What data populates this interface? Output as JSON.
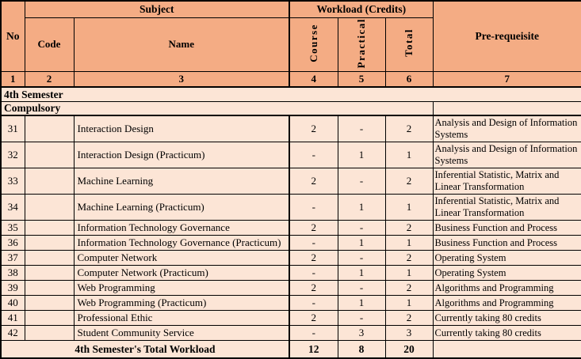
{
  "colors": {
    "header_bg": "#F4AC84",
    "body_bg": "#FCE5D6",
    "border": "#000000"
  },
  "table": {
    "header": {
      "no": "No",
      "subject": "Subject",
      "code": "Code",
      "name": "Name",
      "workload": "Workload (Credits)",
      "course": "Course",
      "practical": "Practical",
      "total": "Total",
      "prerequisite": "Pre-requeisite",
      "col_numbers": [
        "1",
        "2",
        "3",
        "4",
        "5",
        "6",
        "7"
      ]
    },
    "semester_label": "4th Semester",
    "group_label": "Compulsory",
    "rows": [
      {
        "no": "31",
        "code": "",
        "name": "Interaction Design",
        "course": "2",
        "practical": "-",
        "total": "2",
        "prerequisite": "Analysis and Design of Information Systems"
      },
      {
        "no": "32",
        "code": "",
        "name": "Interaction Design (Practicum)",
        "course": "-",
        "practical": "1",
        "total": "1",
        "prerequisite": "Analysis and Design of Information Systems"
      },
      {
        "no": "33",
        "code": "",
        "name": "Machine Learning",
        "course": "2",
        "practical": "-",
        "total": "2",
        "prerequisite": "Inferential Statistic, Matrix and Linear Transformation"
      },
      {
        "no": "34",
        "code": "",
        "name": "Machine Learning (Practicum)",
        "course": "-",
        "practical": "1",
        "total": "1",
        "prerequisite": "Inferential Statistic, Matrix and Linear Transformation"
      },
      {
        "no": "35",
        "code": "",
        "name": "Information Technology Governance",
        "course": "2",
        "practical": "-",
        "total": "2",
        "prerequisite": "Business Function and Process"
      },
      {
        "no": "36",
        "code": "",
        "name": "Information Technology Governance (Practicum)",
        "course": "-",
        "practical": "1",
        "total": "1",
        "prerequisite": "Business Function and Process"
      },
      {
        "no": "37",
        "code": "",
        "name": "Computer Network",
        "course": "2",
        "practical": "-",
        "total": "2",
        "prerequisite": "Operating System"
      },
      {
        "no": "38",
        "code": "",
        "name": "Computer Network (Practicum)",
        "course": "-",
        "practical": "1",
        "total": "1",
        "prerequisite": "Operating System"
      },
      {
        "no": "39",
        "code": "",
        "name": "Web Programming",
        "course": "2",
        "practical": "-",
        "total": "2",
        "prerequisite": "Algorithms and Programming"
      },
      {
        "no": "40",
        "code": "",
        "name": "Web Programming (Practicum)",
        "course": "-",
        "practical": "1",
        "total": "1",
        "prerequisite": "Algorithms and Programming"
      },
      {
        "no": "41",
        "code": "",
        "name": "Professional Ethic",
        "course": "2",
        "practical": "-",
        "total": "2",
        "prerequisite": "Currently taking 80 credits"
      },
      {
        "no": "42",
        "code": "",
        "name": "Student Community Service",
        "course": "-",
        "practical": "3",
        "total": "3",
        "prerequisite": "Currently taking 80 credits"
      }
    ],
    "total_row": {
      "label": "4th Semester's Total Workload",
      "course": "12",
      "practical": "8",
      "total": "20",
      "prerequisite": ""
    }
  }
}
